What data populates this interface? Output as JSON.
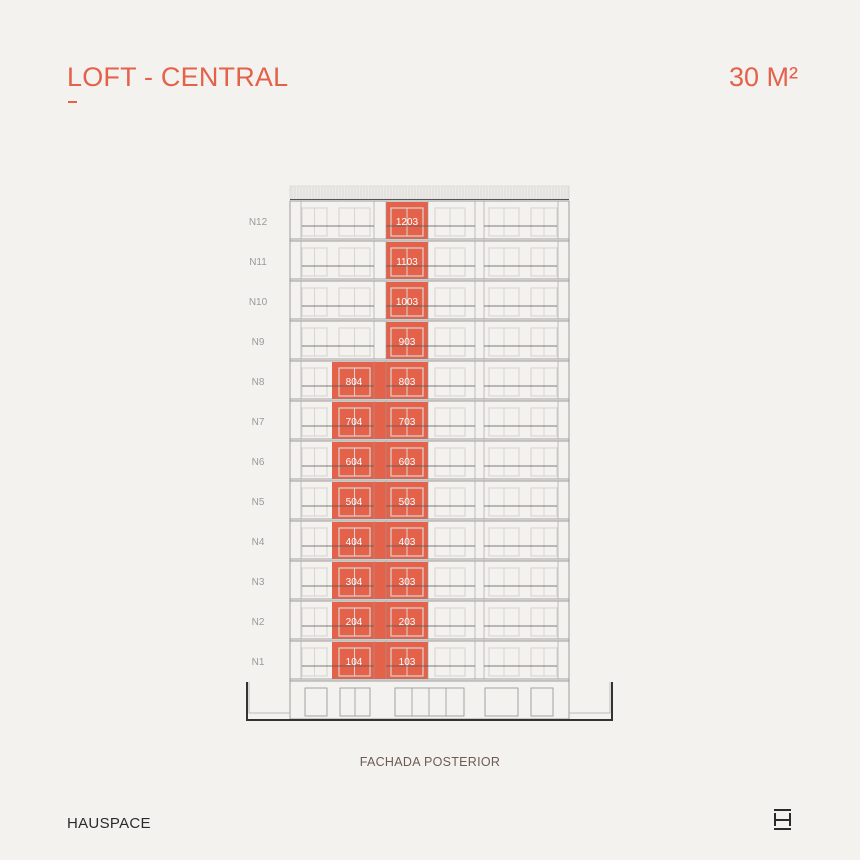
{
  "header": {
    "title": "LOFT - CENTRAL",
    "area": "30 M²"
  },
  "elevation": {
    "caption": "FACHADA POSTERIOR",
    "highlight_color": "#e4614a",
    "floors": [
      {
        "label": "N12",
        "units": [
          "1203"
        ]
      },
      {
        "label": "N11",
        "units": [
          "1103"
        ]
      },
      {
        "label": "N10",
        "units": [
          "1003"
        ]
      },
      {
        "label": "N9",
        "units": [
          "903"
        ]
      },
      {
        "label": "N8",
        "units": [
          "804",
          "803"
        ]
      },
      {
        "label": "N7",
        "units": [
          "704",
          "703"
        ]
      },
      {
        "label": "N6",
        "units": [
          "604",
          "603"
        ]
      },
      {
        "label": "N5",
        "units": [
          "504",
          "503"
        ]
      },
      {
        "label": "N4",
        "units": [
          "404",
          "403"
        ]
      },
      {
        "label": "N3",
        "units": [
          "304",
          "303"
        ]
      },
      {
        "label": "N2",
        "units": [
          "204",
          "203"
        ]
      },
      {
        "label": "N1",
        "units": [
          "104",
          "103"
        ]
      }
    ]
  },
  "footer": {
    "brand": "HAUSPACE",
    "logo_icon": "hauspace-h-logo"
  }
}
